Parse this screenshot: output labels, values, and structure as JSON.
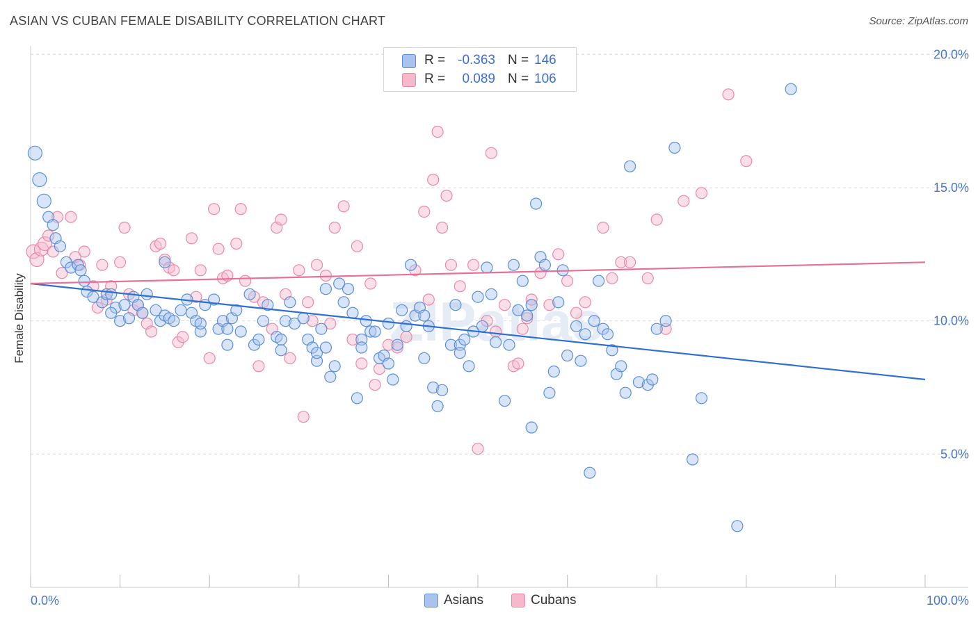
{
  "title": "ASIAN VS CUBAN FEMALE DISABILITY CORRELATION CHART",
  "source": "Source: ZipAtlas.com",
  "watermark": "ZIPatlas",
  "colors": {
    "asians_fill": "#a8c4ee",
    "asians_stroke": "#5b8fd8",
    "asians_line": "#2f6fd0",
    "cubans_fill": "#f7b8cc",
    "cubans_stroke": "#e889a8",
    "cubans_line": "#e3719a",
    "tick_text": "#4a78c8",
    "grid": "#dcdcdc"
  },
  "legend": {
    "rows": [
      {
        "series": "Asians",
        "r_label": "R =",
        "r_value": "-0.363",
        "n_label": "N =",
        "n_value": "146"
      },
      {
        "series": "Cubans",
        "r_label": "R =",
        "r_value": "0.089",
        "n_label": "N =",
        "n_value": "106"
      }
    ]
  },
  "bottom_legend": [
    "Asians",
    "Cubans"
  ],
  "chart_data": {
    "type": "scatter",
    "title": "ASIAN VS CUBAN FEMALE DISABILITY CORRELATION CHART",
    "xlabel": "",
    "ylabel": "Female Disability",
    "x_tick_labels": [
      "0.0%",
      "100.0%"
    ],
    "y_tick_labels": [
      "5.0%",
      "10.0%",
      "15.0%",
      "20.0%"
    ],
    "y_ticks": [
      5,
      10,
      15,
      20
    ],
    "xlim": [
      0,
      100
    ],
    "ylim": [
      0,
      21
    ],
    "grid": "horizontal dashed",
    "legend_position": "top-center",
    "series": [
      {
        "name": "Asians",
        "r": -0.363,
        "n": 146,
        "trend": {
          "x": [
            0,
            100
          ],
          "y": [
            11.4,
            7.8
          ]
        },
        "points": [
          [
            0.5,
            16.3
          ],
          [
            1,
            15.3
          ],
          [
            1.5,
            14.5
          ],
          [
            2,
            13.9
          ],
          [
            2.5,
            13.6
          ],
          [
            2.8,
            13.1
          ],
          [
            3.3,
            12.8
          ],
          [
            4,
            12.2
          ],
          [
            4.5,
            12.0
          ],
          [
            5.3,
            12.1
          ],
          [
            5.6,
            11.9
          ],
          [
            6,
            11.5
          ],
          [
            6.3,
            11.1
          ],
          [
            7,
            10.9
          ],
          [
            8,
            10.7
          ],
          [
            8.5,
            11.0
          ],
          [
            9,
            11.0
          ],
          [
            9.5,
            10.5
          ],
          [
            10,
            10.0
          ],
          [
            10.5,
            10.6
          ],
          [
            11,
            10.1
          ],
          [
            11.5,
            10.9
          ],
          [
            12,
            10.6
          ],
          [
            12.5,
            10.3
          ],
          [
            13,
            11.0
          ],
          [
            14,
            10.4
          ],
          [
            14.5,
            10.0
          ],
          [
            15,
            10.2
          ],
          [
            15.5,
            10.1
          ],
          [
            16,
            10.0
          ],
          [
            16.8,
            10.4
          ],
          [
            17.5,
            10.8
          ],
          [
            18,
            10.3
          ],
          [
            18.5,
            10.0
          ],
          [
            19,
            9.6
          ],
          [
            19.5,
            10.6
          ],
          [
            20.5,
            10.8
          ],
          [
            21,
            9.7
          ],
          [
            21.5,
            10.0
          ],
          [
            22,
            9.1
          ],
          [
            22.5,
            10.1
          ],
          [
            23,
            10.4
          ],
          [
            23.5,
            9.6
          ],
          [
            24.5,
            11.0
          ],
          [
            25,
            9.1
          ],
          [
            25.5,
            9.3
          ],
          [
            26,
            10.0
          ],
          [
            26.5,
            10.6
          ],
          [
            27.5,
            9.4
          ],
          [
            28,
            9.3
          ],
          [
            28.5,
            10.0
          ],
          [
            29,
            10.7
          ],
          [
            29.5,
            9.9
          ],
          [
            30.5,
            10.1
          ],
          [
            31,
            9.3
          ],
          [
            31.5,
            9.0
          ],
          [
            32,
            8.5
          ],
          [
            32.5,
            9.7
          ],
          [
            33,
            11.2
          ],
          [
            33.5,
            7.9
          ],
          [
            34,
            8.3
          ],
          [
            34.5,
            11.4
          ],
          [
            35,
            10.7
          ],
          [
            35.5,
            11.2
          ],
          [
            36,
            10.3
          ],
          [
            36.5,
            7.1
          ],
          [
            37,
            9.3
          ],
          [
            37.5,
            10.0
          ],
          [
            38,
            9.6
          ],
          [
            38.5,
            9.6
          ],
          [
            39,
            8.6
          ],
          [
            39.5,
            8.7
          ],
          [
            40,
            8.4
          ],
          [
            40.5,
            7.8
          ],
          [
            41,
            9.1
          ],
          [
            41.5,
            10.4
          ],
          [
            42,
            9.8
          ],
          [
            42.5,
            12.1
          ],
          [
            43,
            10.2
          ],
          [
            43.5,
            10.5
          ],
          [
            44,
            8.6
          ],
          [
            44.5,
            9.8
          ],
          [
            45,
            7.5
          ],
          [
            45.5,
            6.8
          ],
          [
            46,
            7.4
          ],
          [
            47,
            9.1
          ],
          [
            47.5,
            10.6
          ],
          [
            48,
            9.1
          ],
          [
            48.5,
            9.3
          ],
          [
            49,
            8.3
          ],
          [
            49.5,
            9.6
          ],
          [
            50,
            10.9
          ],
          [
            50.5,
            9.8
          ],
          [
            51,
            12.0
          ],
          [
            51.5,
            11.0
          ],
          [
            52,
            9.2
          ],
          [
            53,
            7.0
          ],
          [
            53.5,
            9.1
          ],
          [
            54,
            12.1
          ],
          [
            54.5,
            10.4
          ],
          [
            55,
            11.5
          ],
          [
            55.5,
            10.2
          ],
          [
            56,
            6.0
          ],
          [
            56.5,
            14.4
          ],
          [
            57,
            12.4
          ],
          [
            57.5,
            12.1
          ],
          [
            58,
            7.3
          ],
          [
            58.5,
            8.1
          ],
          [
            59,
            10.7
          ],
          [
            59.5,
            11.9
          ],
          [
            60,
            8.7
          ],
          [
            61,
            9.8
          ],
          [
            61.5,
            8.5
          ],
          [
            62,
            9.5
          ],
          [
            62.5,
            4.3
          ],
          [
            63.5,
            11.5
          ],
          [
            64,
            9.7
          ],
          [
            64.5,
            9.5
          ],
          [
            65,
            8.9
          ],
          [
            65.5,
            8.0
          ],
          [
            66,
            8.3
          ],
          [
            66.5,
            7.3
          ],
          [
            67,
            15.8
          ],
          [
            68,
            7.7
          ],
          [
            69,
            7.6
          ],
          [
            69.5,
            7.8
          ],
          [
            70,
            9.7
          ],
          [
            71,
            10.0
          ],
          [
            72,
            16.5
          ],
          [
            74,
            4.8
          ],
          [
            75,
            7.1
          ],
          [
            85,
            18.7
          ],
          [
            79,
            2.3
          ],
          [
            32,
            8.8
          ],
          [
            48,
            8.8
          ],
          [
            15,
            12.2
          ],
          [
            22,
            9.7
          ],
          [
            40,
            9.9
          ],
          [
            44,
            10.2
          ],
          [
            56,
            10.6
          ],
          [
            63,
            10.0
          ],
          [
            33,
            9.0
          ],
          [
            37,
            9.0
          ],
          [
            28,
            8.9
          ],
          [
            19,
            9.9
          ],
          [
            9,
            10.3
          ]
        ]
      },
      {
        "name": "Cubans",
        "r": 0.089,
        "n": 106,
        "trend": {
          "x": [
            0,
            100
          ],
          "y": [
            11.4,
            12.2
          ]
        },
        "points": [
          [
            0.3,
            12.6
          ],
          [
            0.7,
            12.3
          ],
          [
            1.2,
            12.7
          ],
          [
            1.6,
            12.9
          ],
          [
            2,
            13.2
          ],
          [
            2.5,
            12.6
          ],
          [
            3,
            13.9
          ],
          [
            3.5,
            11.8
          ],
          [
            4.5,
            13.9
          ],
          [
            5,
            12.4
          ],
          [
            5.5,
            12.1
          ],
          [
            6,
            12.6
          ],
          [
            7,
            11.3
          ],
          [
            7.5,
            10.5
          ],
          [
            8,
            12.1
          ],
          [
            8.5,
            10.8
          ],
          [
            9,
            11.3
          ],
          [
            10,
            12.2
          ],
          [
            10.5,
            13.5
          ],
          [
            11,
            11.0
          ],
          [
            11.5,
            10.4
          ],
          [
            12,
            10.6
          ],
          [
            12.5,
            10.3
          ],
          [
            13,
            9.9
          ],
          [
            13.5,
            9.6
          ],
          [
            14,
            12.8
          ],
          [
            14.5,
            12.9
          ],
          [
            15,
            12.3
          ],
          [
            15.5,
            12.0
          ],
          [
            16,
            11.9
          ],
          [
            16.5,
            9.2
          ],
          [
            17,
            9.4
          ],
          [
            18,
            13.1
          ],
          [
            18.5,
            10.9
          ],
          [
            19,
            11.9
          ],
          [
            20,
            8.6
          ],
          [
            20.5,
            14.2
          ],
          [
            21,
            12.7
          ],
          [
            21.5,
            11.6
          ],
          [
            22,
            11.7
          ],
          [
            23,
            12.9
          ],
          [
            23.5,
            14.2
          ],
          [
            24,
            11.5
          ],
          [
            25,
            10.9
          ],
          [
            25.5,
            8.3
          ],
          [
            26,
            10.7
          ],
          [
            27,
            9.7
          ],
          [
            27.5,
            13.5
          ],
          [
            28,
            13.8
          ],
          [
            28.5,
            11.0
          ],
          [
            29,
            8.6
          ],
          [
            30,
            11.9
          ],
          [
            30.5,
            6.4
          ],
          [
            31,
            10.7
          ],
          [
            31.5,
            10.0
          ],
          [
            32,
            12.1
          ],
          [
            33,
            11.7
          ],
          [
            33.5,
            9.9
          ],
          [
            34,
            13.5
          ],
          [
            35,
            14.3
          ],
          [
            36,
            9.3
          ],
          [
            36.5,
            12.8
          ],
          [
            37,
            8.4
          ],
          [
            38,
            11.4
          ],
          [
            38.5,
            7.6
          ],
          [
            39,
            8.2
          ],
          [
            40,
            9.1
          ],
          [
            41,
            9.0
          ],
          [
            42,
            9.4
          ],
          [
            43,
            11.9
          ],
          [
            44,
            14.1
          ],
          [
            44.5,
            10.8
          ],
          [
            45,
            15.3
          ],
          [
            45.5,
            17.1
          ],
          [
            46,
            13.5
          ],
          [
            46.5,
            14.7
          ],
          [
            47,
            12.1
          ],
          [
            48,
            11.3
          ],
          [
            49.5,
            12.1
          ],
          [
            50,
            5.2
          ],
          [
            51,
            10.0
          ],
          [
            51.5,
            16.3
          ],
          [
            52,
            9.6
          ],
          [
            53,
            10.6
          ],
          [
            54,
            8.3
          ],
          [
            54.5,
            8.4
          ],
          [
            55,
            9.7
          ],
          [
            55.5,
            10.1
          ],
          [
            56,
            10.8
          ],
          [
            57,
            11.8
          ],
          [
            58,
            10.6
          ],
          [
            59,
            12.5
          ],
          [
            60,
            11.5
          ],
          [
            61,
            10.3
          ],
          [
            62,
            10.7
          ],
          [
            64,
            13.5
          ],
          [
            65,
            11.6
          ],
          [
            66,
            12.2
          ],
          [
            67,
            12.2
          ],
          [
            69,
            11.6
          ],
          [
            70,
            13.8
          ],
          [
            71,
            9.7
          ],
          [
            73,
            14.5
          ],
          [
            75,
            14.8
          ],
          [
            78,
            18.5
          ],
          [
            80,
            16.0
          ]
        ]
      }
    ]
  }
}
